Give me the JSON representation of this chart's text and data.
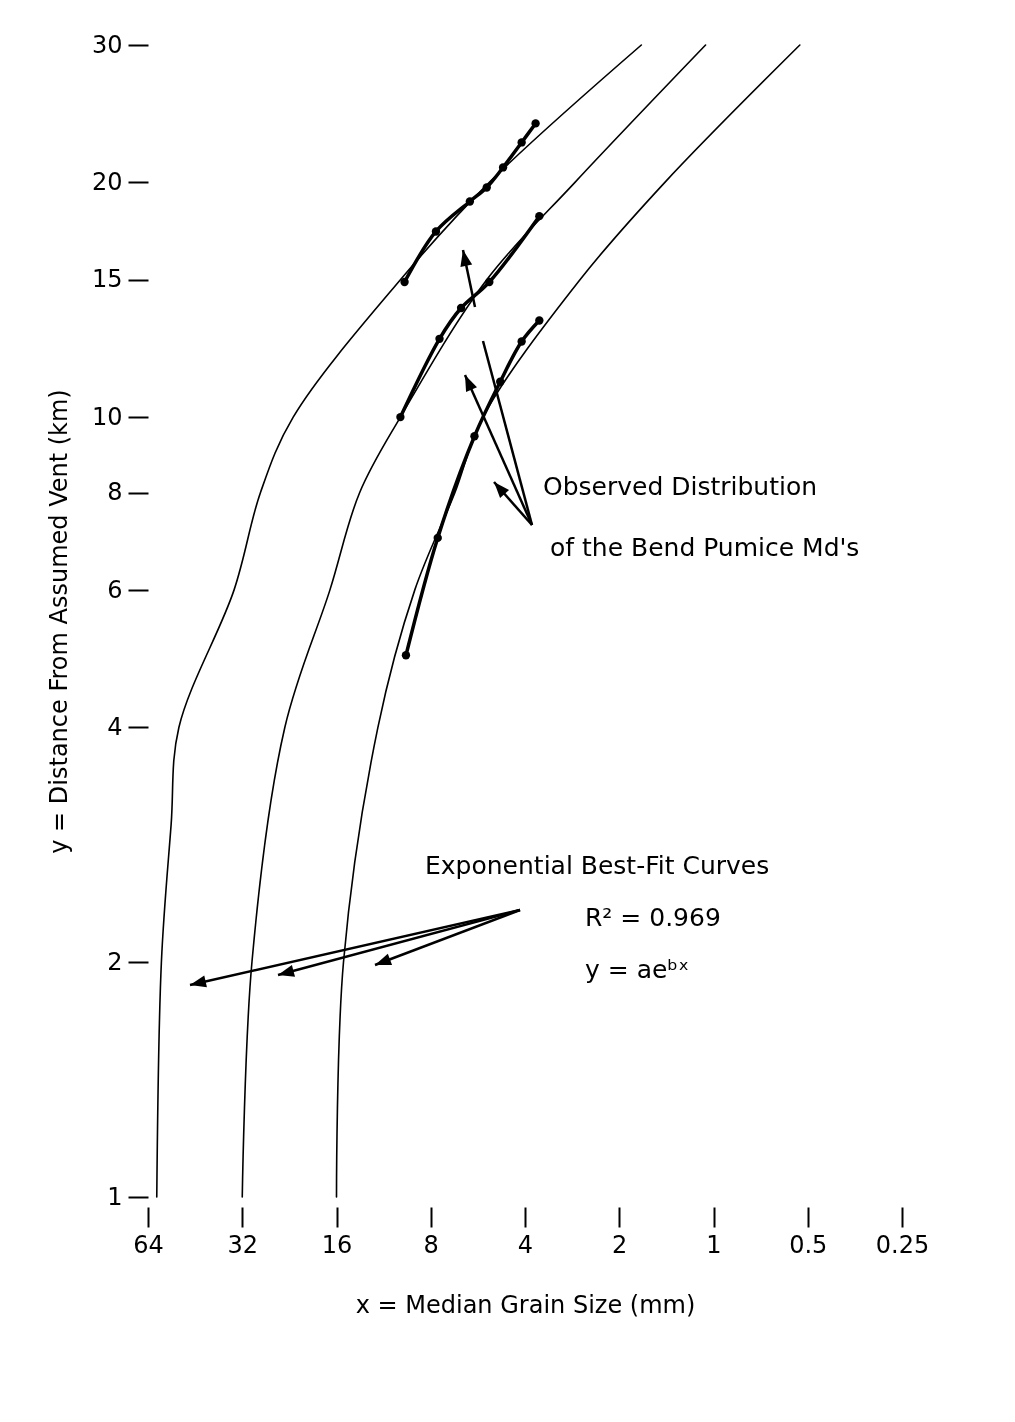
{
  "chart_data": {
    "type": "line",
    "xlabel": "x = Median Grain Size (mm)",
    "ylabel": "y = Distance From Assumed Vent (km)",
    "xlim": [
      64,
      0.25
    ],
    "xticks": [
      64,
      32,
      16,
      8,
      4,
      2,
      1,
      0.5,
      0.25
    ],
    "ylim": [
      1,
      30
    ],
    "yticks": [
      1,
      2,
      4,
      6,
      8,
      10,
      15,
      20,
      30
    ],
    "log": "xy",
    "series": [
      {
        "type": "line",
        "color": "#000000",
        "x": [
          60,
          58,
          54,
          51,
          34,
          28,
          22,
          10,
          5.2,
          1.7
        ],
        "values": [
          1,
          2,
          3,
          4,
          6,
          8,
          10,
          15,
          20,
          30
        ]
      },
      {
        "type": "line",
        "color": "#000000",
        "x": [
          32,
          29.8,
          23.4,
          16.8,
          13.5,
          10,
          5.3,
          2.77,
          1.06
        ],
        "values": [
          1,
          2,
          4,
          6,
          8,
          10,
          15,
          20,
          30
        ]
      },
      {
        "type": "line",
        "color": "#000000",
        "x": [
          16,
          15.2,
          11.8,
          9,
          6.7,
          5.45,
          2.67,
          1.43,
          0.53
        ],
        "values": [
          1,
          2,
          4,
          6,
          8,
          10,
          15,
          20,
          30
        ]
      },
      {
        "type": "line",
        "color": "#000000",
        "marker": "circle",
        "x": [
          9.7,
          7.7,
          6.0,
          5.3,
          4.7,
          4.1,
          3.7
        ],
        "values": [
          14.9,
          17.3,
          18.9,
          19.7,
          20.9,
          22.5,
          23.8
        ]
      },
      {
        "type": "line",
        "color": "#000000",
        "marker": "circle",
        "x": [
          10.0,
          7.5,
          6.4,
          5.2,
          3.6
        ],
        "values": [
          10.0,
          12.6,
          13.8,
          14.9,
          18.1
        ]
      },
      {
        "type": "line",
        "color": "#000000",
        "marker": "circle",
        "x": [
          9.6,
          7.6,
          5.8,
          4.8,
          4.1,
          3.6
        ],
        "values": [
          4.95,
          7.0,
          9.45,
          11.1,
          12.5,
          13.3
        ]
      }
    ],
    "annotations": [
      "Observed Distribution",
      "of the Bend Pumice Md's",
      "Exponential Best-Fit Curves",
      "R² = 0.969",
      "y = aeᵇˣ"
    ]
  }
}
